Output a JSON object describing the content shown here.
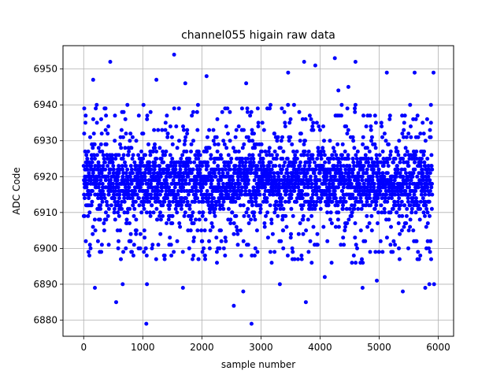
{
  "chart_data": {
    "type": "scatter",
    "title": "channel055 higain raw data",
    "xlabel": "sample number",
    "ylabel": "ADC Code",
    "xlim": [
      -350,
      6260
    ],
    "ylim": [
      6875.5,
      6956.5
    ],
    "xticks": [
      0,
      1000,
      2000,
      3000,
      4000,
      5000,
      6000
    ],
    "yticks": [
      6880,
      6890,
      6900,
      6910,
      6920,
      6930,
      6940,
      6950
    ],
    "grid": true,
    "marker_color": "#0000ff",
    "series": [
      {
        "n_samples": 5900,
        "baseline": 6918,
        "noise_range": [
          6896,
          6940
        ],
        "dense_band": [
          6905,
          6932
        ],
        "outliers": [
          [
            1530,
            6954
          ],
          [
            4250,
            6953
          ],
          [
            450,
            6952
          ],
          [
            3730,
            6952
          ],
          [
            4600,
            6952
          ],
          [
            3920,
            6951
          ],
          [
            5130,
            6949
          ],
          [
            5600,
            6949
          ],
          [
            5920,
            6949
          ],
          [
            2080,
            6948
          ],
          [
            160,
            6947
          ],
          [
            1230,
            6947
          ],
          [
            1720,
            6946
          ],
          [
            4480,
            6945
          ],
          [
            4310,
            6944
          ],
          [
            3460,
            6949
          ],
          [
            2750,
            6946
          ],
          [
            1070,
            6890
          ],
          [
            550,
            6885
          ],
          [
            2540,
            6884
          ],
          [
            3760,
            6885
          ],
          [
            4080,
            6892
          ],
          [
            1060,
            6879
          ],
          [
            2840,
            6879
          ],
          [
            5400,
            6888
          ],
          [
            1680,
            6889
          ],
          [
            3320,
            6890
          ],
          [
            4720,
            6889
          ],
          [
            5850,
            6890
          ],
          [
            190,
            6889
          ],
          [
            2700,
            6888
          ],
          [
            660,
            6890
          ],
          [
            5930,
            6890
          ],
          [
            5780,
            6889
          ],
          [
            4960,
            6891
          ]
        ]
      }
    ]
  }
}
